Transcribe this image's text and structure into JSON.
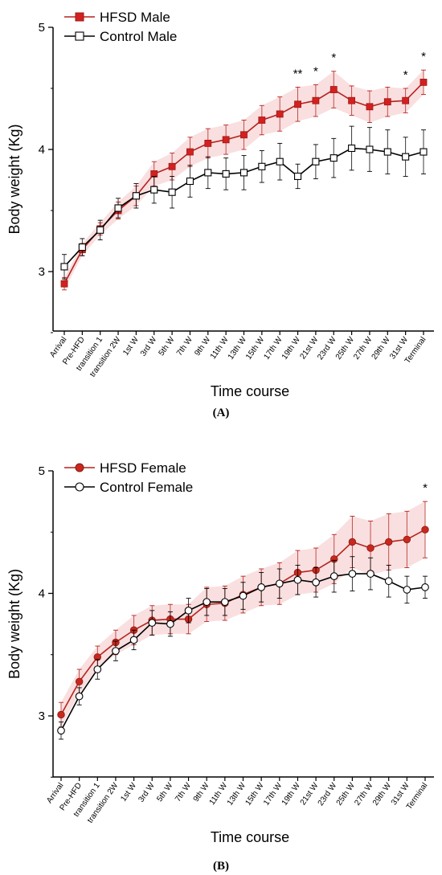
{
  "chart_data": [
    {
      "type": "line",
      "panel_label": "(A)",
      "xlabel": "Time course",
      "ylabel": "Body weight (Kg)",
      "ylim": [
        2.5,
        5.0
      ],
      "yticks": [
        "3",
        "4",
        "5"
      ],
      "categories": [
        "Arrival",
        "Pre-HFD",
        "transition 1",
        "transition 2W",
        "1st W",
        "3rd W",
        "5th W",
        "7th W",
        "9th W",
        "11th W",
        "13th W",
        "15th W",
        "17th W",
        "19th W",
        "21st W",
        "23rd W",
        "25th W",
        "27th W",
        "29th W",
        "31st W",
        "Terminal"
      ],
      "legend_position": "top-left",
      "series": [
        {
          "name": "HFSD Male",
          "marker": "filled-square",
          "color": "#b5221e",
          "band_color": "#f2b8b8",
          "values": [
            2.9,
            3.18,
            3.35,
            3.5,
            3.62,
            3.8,
            3.86,
            3.98,
            4.05,
            4.08,
            4.12,
            4.24,
            4.29,
            4.37,
            4.4,
            4.49,
            4.4,
            4.35,
            4.39,
            4.4,
            4.55
          ],
          "errors": [
            0.05,
            0.05,
            0.05,
            0.07,
            0.08,
            0.1,
            0.11,
            0.12,
            0.12,
            0.12,
            0.12,
            0.12,
            0.14,
            0.14,
            0.13,
            0.15,
            0.12,
            0.13,
            0.12,
            0.1,
            0.1
          ]
        },
        {
          "name": "Control Male",
          "marker": "open-square",
          "color": "#000000",
          "values": [
            3.04,
            3.2,
            3.34,
            3.52,
            3.62,
            3.67,
            3.65,
            3.74,
            3.81,
            3.8,
            3.81,
            3.86,
            3.9,
            3.78,
            3.9,
            3.93,
            4.01,
            4.0,
            3.98,
            3.94,
            3.98
          ],
          "errors": [
            0.1,
            0.07,
            0.08,
            0.08,
            0.1,
            0.11,
            0.13,
            0.13,
            0.13,
            0.13,
            0.14,
            0.13,
            0.15,
            0.1,
            0.14,
            0.16,
            0.18,
            0.18,
            0.18,
            0.16,
            0.18
          ]
        }
      ],
      "significance": [
        {
          "category": "19th W",
          "label": "**"
        },
        {
          "category": "21st W",
          "label": "*"
        },
        {
          "category": "23rd W",
          "label": "*"
        },
        {
          "category": "31st W",
          "label": "*"
        },
        {
          "category": "Terminal",
          "label": "*"
        }
      ]
    },
    {
      "type": "line",
      "panel_label": "(B)",
      "xlabel": "Time course",
      "ylabel": "Body weight (Kg)",
      "ylim": [
        2.5,
        5.0
      ],
      "yticks": [
        "3",
        "4",
        "5"
      ],
      "categories": [
        "Arrival",
        "Pre-HFD",
        "transition 1",
        "transition 2W",
        "1st W",
        "3rd W",
        "5th W",
        "7th W",
        "9th W",
        "11th W",
        "13th W",
        "15th W",
        "17th W",
        "19th W",
        "21st W",
        "23rd W",
        "25th W",
        "27th W",
        "29th W",
        "31st W",
        "Terminal"
      ],
      "legend_position": "top-left",
      "series": [
        {
          "name": "HFSD Female",
          "marker": "filled-circle",
          "color": "#b5221e",
          "band_color": "#f2b8b8",
          "values": [
            3.01,
            3.28,
            3.48,
            3.6,
            3.7,
            3.78,
            3.79,
            3.79,
            3.91,
            3.92,
            3.99,
            4.05,
            4.08,
            4.17,
            4.19,
            4.28,
            4.42,
            4.37,
            4.42,
            4.44,
            4.52
          ],
          "errors": [
            0.1,
            0.1,
            0.09,
            0.1,
            0.12,
            0.12,
            0.12,
            0.12,
            0.14,
            0.14,
            0.15,
            0.15,
            0.17,
            0.18,
            0.18,
            0.2,
            0.21,
            0.22,
            0.23,
            0.23,
            0.23
          ]
        },
        {
          "name": "Control Female",
          "marker": "open-circle",
          "color": "#000000",
          "values": [
            2.88,
            3.16,
            3.38,
            3.53,
            3.62,
            3.76,
            3.75,
            3.86,
            3.93,
            3.93,
            3.98,
            4.05,
            4.08,
            4.11,
            4.09,
            4.14,
            4.16,
            4.16,
            4.1,
            4.03,
            4.05
          ],
          "errors": [
            0.07,
            0.07,
            0.08,
            0.08,
            0.08,
            0.1,
            0.1,
            0.1,
            0.11,
            0.11,
            0.11,
            0.12,
            0.12,
            0.12,
            0.12,
            0.13,
            0.14,
            0.13,
            0.13,
            0.11,
            0.09
          ]
        }
      ],
      "significance": [
        {
          "category": "Terminal",
          "label": "*"
        }
      ]
    }
  ]
}
